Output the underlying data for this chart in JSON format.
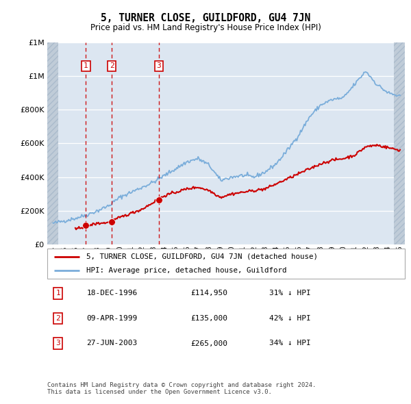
{
  "title": "5, TURNER CLOSE, GUILDFORD, GU4 7JN",
  "subtitle": "Price paid vs. HM Land Registry's House Price Index (HPI)",
  "legend_line1": "5, TURNER CLOSE, GUILDFORD, GU4 7JN (detached house)",
  "legend_line2": "HPI: Average price, detached house, Guildford",
  "footer": "Contains HM Land Registry data © Crown copyright and database right 2024.\nThis data is licensed under the Open Government Licence v3.0.",
  "sales": [
    {
      "label": "1",
      "date": "18-DEC-1996",
      "price": 114950,
      "note": "31% ↓ HPI",
      "x": 1996.96
    },
    {
      "label": "2",
      "date": "09-APR-1999",
      "price": 135000,
      "note": "42% ↓ HPI",
      "x": 1999.27
    },
    {
      "label": "3",
      "date": "27-JUN-2003",
      "price": 265000,
      "note": "34% ↓ HPI",
      "x": 2003.49
    }
  ],
  "ylim": [
    0,
    1200000
  ],
  "xlim": [
    1993.5,
    2025.5
  ],
  "red_color": "#cc0000",
  "blue_color": "#7aadda",
  "plot_bg": "#dce6f1",
  "hpi_anchors_x": [
    1994,
    1995,
    1996,
    1997,
    1998,
    1999,
    2000,
    2001,
    2002,
    2003,
    2004,
    2005,
    2006,
    2007,
    2008,
    2009,
    2010,
    2011,
    2012,
    2013,
    2014,
    2015,
    2016,
    2017,
    2018,
    2019,
    2020,
    2021,
    2022,
    2023,
    2024,
    2025
  ],
  "hpi_anchors_y": [
    125000,
    140000,
    155000,
    175000,
    200000,
    230000,
    280000,
    310000,
    340000,
    370000,
    410000,
    450000,
    490000,
    510000,
    470000,
    380000,
    400000,
    410000,
    400000,
    430000,
    480000,
    560000,
    650000,
    760000,
    830000,
    860000,
    870000,
    950000,
    1030000,
    950000,
    900000,
    880000
  ],
  "red_anchors_x": [
    1996,
    1997,
    1998,
    1999,
    2000,
    2001,
    2002,
    2003,
    2004,
    2005,
    2006,
    2007,
    2008,
    2009,
    2010,
    2011,
    2012,
    2013,
    2014,
    2015,
    2016,
    2017,
    2018,
    2019,
    2020,
    2021,
    2022,
    2023,
    2024,
    2025
  ],
  "red_anchors_y": [
    90000,
    110000,
    125000,
    130000,
    160000,
    185000,
    210000,
    250000,
    290000,
    310000,
    330000,
    340000,
    320000,
    280000,
    300000,
    310000,
    320000,
    330000,
    360000,
    390000,
    420000,
    450000,
    480000,
    500000,
    510000,
    530000,
    580000,
    590000,
    575000,
    560000
  ]
}
